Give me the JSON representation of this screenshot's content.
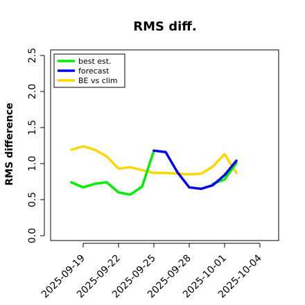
{
  "chart_data": {
    "type": "line",
    "title": "RMS diff.",
    "xlabel": "",
    "ylabel": "RMS difference",
    "ylim": [
      0.0,
      2.5
    ],
    "yticks": [
      "0.0",
      "0.5",
      "1.0",
      "1.5",
      "2.0",
      "2.5"
    ],
    "xticks": [
      "2025-09-19",
      "2025-09-22",
      "2025-09-25",
      "2025-09-28",
      "2025-10-01",
      "2025-10-04"
    ],
    "highlighted_xtick": "2025-09-25",
    "highlight_color": "#228B22",
    "x": [
      "2025-09-18",
      "2025-09-19",
      "2025-09-20",
      "2025-09-21",
      "2025-09-22",
      "2025-09-23",
      "2025-09-24",
      "2025-09-25",
      "2025-09-26",
      "2025-09-27",
      "2025-09-28",
      "2025-09-29",
      "2025-09-30",
      "2025-10-01",
      "2025-10-02"
    ],
    "series": [
      {
        "name": "best est.",
        "color": "#00EE00",
        "values": [
          0.74,
          0.67,
          0.72,
          0.74,
          0.6,
          0.57,
          0.68,
          1.18,
          1.16,
          null,
          null,
          null,
          0.72,
          0.78,
          1.01
        ]
      },
      {
        "name": "forecast",
        "color": "#0000EE",
        "values": [
          null,
          null,
          null,
          null,
          null,
          null,
          null,
          1.18,
          1.16,
          0.88,
          0.67,
          0.65,
          0.7,
          0.84,
          1.04
        ]
      },
      {
        "name": "BE vs clim",
        "color": "#FFD700",
        "values": [
          1.19,
          1.24,
          1.19,
          1.1,
          0.93,
          0.95,
          0.91,
          0.87,
          0.87,
          0.86,
          0.85,
          0.86,
          0.96,
          1.13,
          0.87
        ]
      }
    ],
    "grid": false,
    "legend": "top-left"
  }
}
